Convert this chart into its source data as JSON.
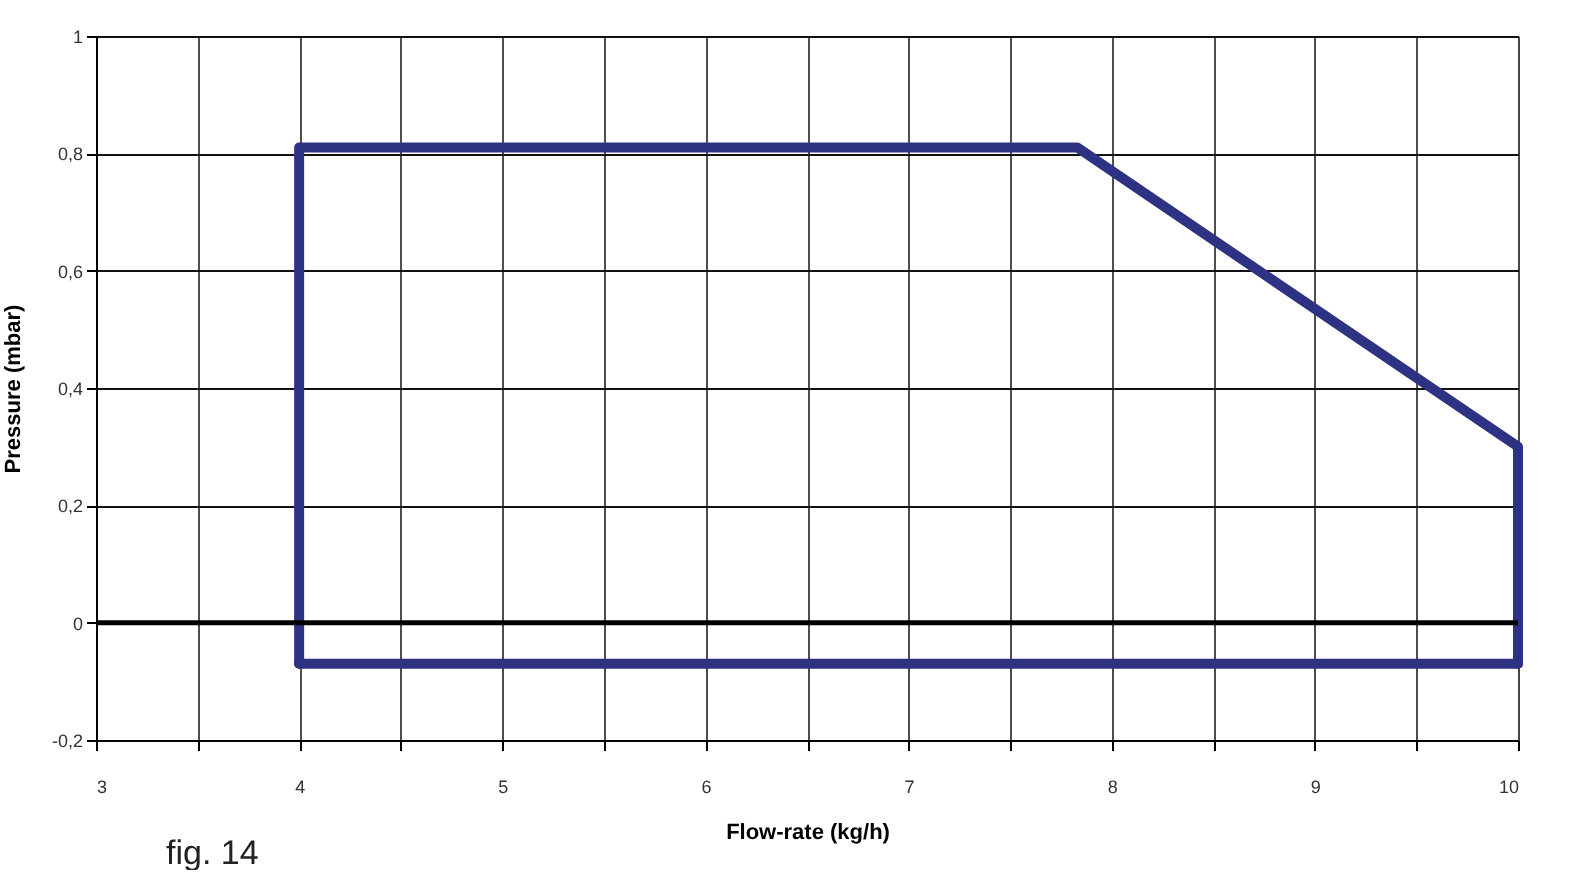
{
  "chart_data": {
    "type": "line",
    "xlabel": "Flow-rate (kg/h)",
    "ylabel": "Pressure (mbar)",
    "series": [
      {
        "color": "#2e3283",
        "x": [
          4,
          4,
          7.83,
          10,
          10
        ],
        "values": [
          -0.07,
          0.81,
          0.81,
          0.3,
          -0.07
        ]
      },
      {
        "color": "#2e3283",
        "x": [
          4,
          10
        ],
        "values": [
          -0.07,
          -0.07
        ]
      }
    ],
    "xlim": [
      3,
      10
    ],
    "ylim": [
      -0.2,
      1
    ],
    "xticks": [
      3,
      {
        "value": 3.5,
        "label": null
      },
      4,
      {
        "value": 4.5,
        "label": null
      },
      5,
      {
        "value": 5.5,
        "label": null
      },
      6,
      {
        "value": 6.5,
        "label": null
      },
      7,
      {
        "value": 7.5,
        "label": null
      },
      8,
      {
        "value": 8.5,
        "label": null
      },
      9,
      {
        "value": 9.5,
        "label": null
      },
      10
    ],
    "yticks": [
      {
        "value": -0.2,
        "label": "-0,2"
      },
      0,
      {
        "value": 0.2,
        "label": "0,2"
      },
      {
        "value": 0.4,
        "label": "0,4"
      },
      {
        "value": 0.6,
        "label": "0,6"
      },
      {
        "value": 0.8,
        "label": "0,8"
      },
      1
    ],
    "ref_lines": [
      {
        "axis": "y",
        "value": 0,
        "color": "#000000"
      }
    ],
    "grid": true,
    "marker": "none",
    "line_style": "solid",
    "annotations": [
      "fig. 14"
    ]
  }
}
